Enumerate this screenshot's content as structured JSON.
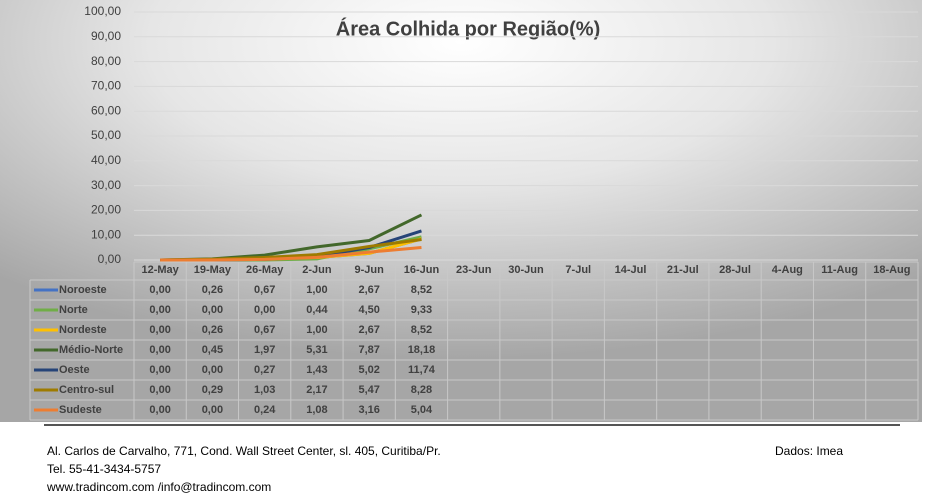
{
  "chart_data": {
    "type": "line",
    "title": "Área Colhida por Região(%)",
    "categories": [
      "12-May",
      "19-May",
      "26-May",
      "2-Jun",
      "9-Jun",
      "16-Jun",
      "23-Jun",
      "30-Jun",
      "7-Jul",
      "14-Jul",
      "21-Jul",
      "28-Jul",
      "4-Aug",
      "11-Aug",
      "18-Aug"
    ],
    "ylim": [
      0,
      100
    ],
    "yticks": [
      {
        "value": 0,
        "label": "0,00"
      },
      {
        "value": 10,
        "label": "10,00"
      },
      {
        "value": 20,
        "label": "20,00"
      },
      {
        "value": 30,
        "label": "30,00"
      },
      {
        "value": 40,
        "label": "40,00"
      },
      {
        "value": 50,
        "label": "50,00"
      },
      {
        "value": 60,
        "label": "60,00"
      },
      {
        "value": 70,
        "label": "70,00"
      },
      {
        "value": 80,
        "label": "80,00"
      },
      {
        "value": 90,
        "label": "90,00"
      },
      {
        "value": 100,
        "label": "100,00"
      }
    ],
    "grid": true,
    "series": [
      {
        "name": "Noroeste",
        "color": "#4472c4",
        "values": [
          0,
          0.26,
          0.67,
          1.0,
          2.67,
          8.52,
          null,
          null,
          null,
          null,
          null,
          null,
          null,
          null,
          null
        ],
        "value_labels": [
          "0,00",
          "0,26",
          "0,67",
          "1,00",
          "2,67",
          "8,52",
          null,
          null,
          null,
          null,
          null,
          null,
          null,
          null,
          null
        ]
      },
      {
        "name": "Norte",
        "color": "#70ad47",
        "values": [
          0,
          0,
          0,
          0.44,
          4.5,
          9.33,
          null,
          null,
          null,
          null,
          null,
          null,
          null,
          null,
          null
        ],
        "value_labels": [
          "0,00",
          "0,00",
          "0,00",
          "0,44",
          "4,50",
          "9,33",
          null,
          null,
          null,
          null,
          null,
          null,
          null,
          null,
          null
        ]
      },
      {
        "name": "Nordeste",
        "color": "#ffc000",
        "values": [
          0,
          0.26,
          0.67,
          1.0,
          2.67,
          8.52,
          null,
          null,
          null,
          null,
          null,
          null,
          null,
          null,
          null
        ],
        "value_labels": [
          "0,00",
          "0,26",
          "0,67",
          "1,00",
          "2,67",
          "8,52",
          null,
          null,
          null,
          null,
          null,
          null,
          null,
          null,
          null
        ]
      },
      {
        "name": "Médio-Norte",
        "color": "#43682b",
        "values": [
          0,
          0.45,
          1.97,
          5.31,
          7.87,
          18.18,
          null,
          null,
          null,
          null,
          null,
          null,
          null,
          null,
          null
        ],
        "value_labels": [
          "0,00",
          "0,45",
          "1,97",
          "5,31",
          "7,87",
          "18,18",
          null,
          null,
          null,
          null,
          null,
          null,
          null,
          null,
          null
        ]
      },
      {
        "name": "Oeste",
        "color": "#264478",
        "values": [
          0,
          0,
          0.27,
          1.43,
          5.02,
          11.74,
          null,
          null,
          null,
          null,
          null,
          null,
          null,
          null,
          null
        ],
        "value_labels": [
          "0,00",
          "0,00",
          "0,27",
          "1,43",
          "5,02",
          "11,74",
          null,
          null,
          null,
          null,
          null,
          null,
          null,
          null,
          null
        ]
      },
      {
        "name": "Centro-sul",
        "color": "#9e7b00",
        "values": [
          0,
          0.29,
          1.03,
          2.17,
          5.47,
          8.28,
          null,
          null,
          null,
          null,
          null,
          null,
          null,
          null,
          null
        ],
        "value_labels": [
          "0,00",
          "0,29",
          "1,03",
          "2,17",
          "5,47",
          "8,28",
          null,
          null,
          null,
          null,
          null,
          null,
          null,
          null,
          null
        ]
      },
      {
        "name": "Sudeste",
        "color": "#ed7d31",
        "values": [
          0,
          0,
          0.24,
          1.08,
          3.16,
          5.04,
          null,
          null,
          null,
          null,
          null,
          null,
          null,
          null,
          null
        ],
        "value_labels": [
          "0,00",
          "0,00",
          "0,24",
          "1,08",
          "3,16",
          "5,04",
          null,
          null,
          null,
          null,
          null,
          null,
          null,
          null,
          null
        ]
      }
    ]
  },
  "footer": {
    "address": "Al. Carlos de Carvalho, 771, Cond. Wall Street Center, sl. 405, Curitiba/Pr.",
    "tel": "Tel. 55-41-3434-5757",
    "web": "www.tradincom.com /info@tradincom.com",
    "source": "Dados: Imea"
  }
}
